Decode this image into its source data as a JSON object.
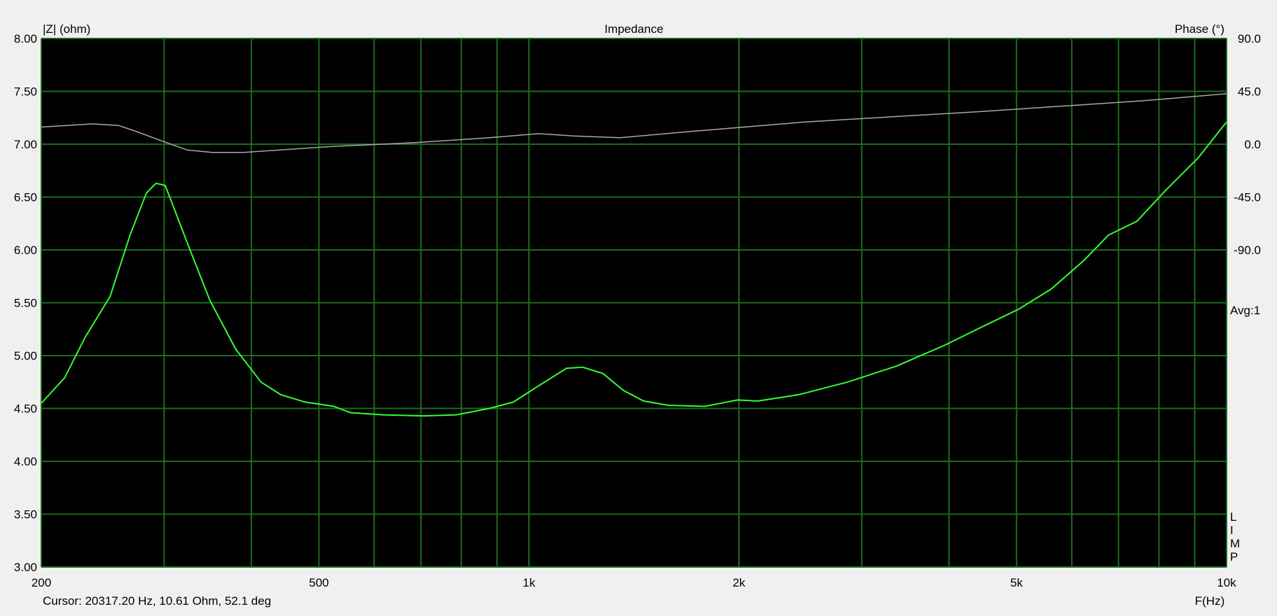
{
  "chart_data": {
    "type": "line",
    "title": "Impedance",
    "xlabel": "F(Hz)",
    "ylabel": "|Z| (ohm)",
    "y2label": "Phase (°)",
    "xscale": "log",
    "xlim": [
      200,
      10000
    ],
    "ylim": [
      3.0,
      8.0
    ],
    "y2lim": [
      -360,
      90
    ],
    "grid": true,
    "x_gridlines": [
      200,
      300,
      400,
      500,
      600,
      700,
      800,
      900,
      1000,
      2000,
      3000,
      4000,
      5000,
      6000,
      7000,
      8000,
      9000,
      10000
    ],
    "x_ticks": [
      {
        "value": 200,
        "label": "200"
      },
      {
        "value": 500,
        "label": "500"
      },
      {
        "value": 1000,
        "label": "1k"
      },
      {
        "value": 2000,
        "label": "2k"
      },
      {
        "value": 5000,
        "label": "5k"
      },
      {
        "value": 10000,
        "label": "10k"
      }
    ],
    "y_ticks": [
      {
        "value": 8.0,
        "label": "8.00"
      },
      {
        "value": 7.5,
        "label": "7.50"
      },
      {
        "value": 7.0,
        "label": "7.00"
      },
      {
        "value": 6.5,
        "label": "6.50"
      },
      {
        "value": 6.0,
        "label": "6.00"
      },
      {
        "value": 5.5,
        "label": "5.50"
      },
      {
        "value": 5.0,
        "label": "5.00"
      },
      {
        "value": 4.5,
        "label": "4.50"
      },
      {
        "value": 4.0,
        "label": "4.00"
      },
      {
        "value": 3.5,
        "label": "3.50"
      },
      {
        "value": 3.0,
        "label": "3.00"
      }
    ],
    "y2_ticks": [
      {
        "value": 90,
        "label": "90.0"
      },
      {
        "value": 45,
        "label": "45.0"
      },
      {
        "value": 0,
        "label": "0.0"
      },
      {
        "value": -45,
        "label": "-45.0"
      },
      {
        "value": -90,
        "label": "-90.0"
      }
    ],
    "series": [
      {
        "axis": "left",
        "color": "#33ff33",
        "x": [
          200,
          216,
          231,
          251,
          268,
          283,
          292,
          301,
          308,
          324,
          349,
          380,
          413,
          441,
          478,
          525,
          555,
          618,
          707,
          787,
          877,
          950,
          1030,
          1132,
          1194,
          1277,
          1366,
          1460,
          1583,
          1787,
          1991,
          2129,
          2435,
          2862,
          3362,
          3950,
          4520,
          5036,
          5606,
          6244,
          6770,
          7436,
          8171,
          9104,
          10000
        ],
        "y": [
          4.55,
          4.79,
          5.17,
          5.56,
          6.14,
          6.54,
          6.63,
          6.61,
          6.44,
          6.06,
          5.52,
          5.06,
          4.75,
          4.63,
          4.56,
          4.52,
          4.46,
          4.44,
          4.43,
          4.44,
          4.5,
          4.56,
          4.71,
          4.88,
          4.89,
          4.83,
          4.67,
          4.57,
          4.53,
          4.52,
          4.58,
          4.57,
          4.63,
          4.75,
          4.9,
          5.1,
          5.29,
          5.44,
          5.63,
          5.9,
          6.14,
          6.27,
          6.56,
          6.87,
          7.21
        ]
      },
      {
        "axis": "right",
        "color": "#a8a8a8",
        "x": [
          200,
          237,
          258,
          273,
          300,
          324,
          352,
          390,
          519,
          688,
          877,
          1030,
          1160,
          1349,
          1720,
          2500,
          4500,
          7600,
          10000
        ],
        "y": [
          14.6,
          17.3,
          16,
          11,
          2,
          -5,
          -7,
          -7,
          -2,
          1.4,
          5.5,
          9,
          7,
          5.5,
          11,
          19,
          28,
          37,
          43
        ]
      }
    ]
  },
  "side_labels": {
    "avg": "Avg:1",
    "limp": [
      "L",
      "I",
      "M",
      "P"
    ]
  },
  "status": {
    "cursor": "Cursor: 20317.20 Hz, 10.61 Ohm, 52.1 deg"
  }
}
